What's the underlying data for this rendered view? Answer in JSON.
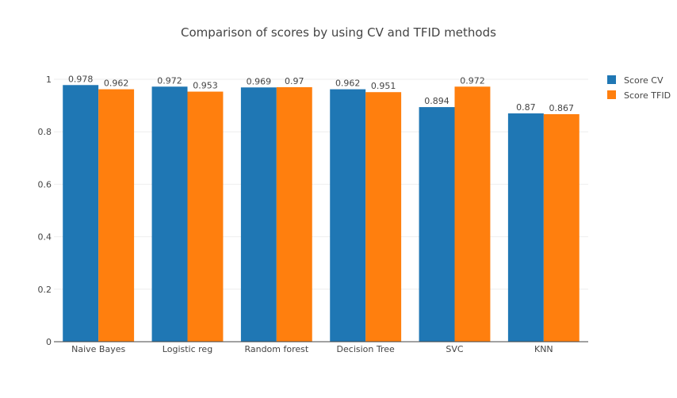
{
  "chart_data": {
    "type": "bar",
    "title": "Comparison of scores by using CV and TFID methods",
    "xlabel": "",
    "ylabel": "",
    "categories": [
      "Naive Bayes",
      "Logistic reg",
      "Random forest",
      "Decision Tree",
      "SVC",
      "KNN"
    ],
    "series": [
      {
        "name": "Score CV",
        "values": [
          0.978,
          0.972,
          0.969,
          0.962,
          0.894,
          0.87
        ],
        "labels": [
          "0.978",
          "0.972",
          "0.969",
          "0.962",
          "0.894",
          "0.87"
        ],
        "color": "#1f77b4"
      },
      {
        "name": "Score TFID",
        "values": [
          0.962,
          0.953,
          0.97,
          0.951,
          0.972,
          0.867
        ],
        "labels": [
          "0.962",
          "0.953",
          "0.97",
          "0.951",
          "0.972",
          "0.867"
        ],
        "color": "#ff7f0e"
      }
    ],
    "ylim": [
      0,
      1.0
    ],
    "yticks": [
      0,
      0.2,
      0.4,
      0.6,
      0.8,
      1
    ],
    "ytick_labels": [
      "0",
      "0.2",
      "0.4",
      "0.6",
      "0.8",
      "1"
    ],
    "grid": true,
    "legend": "top-right"
  }
}
